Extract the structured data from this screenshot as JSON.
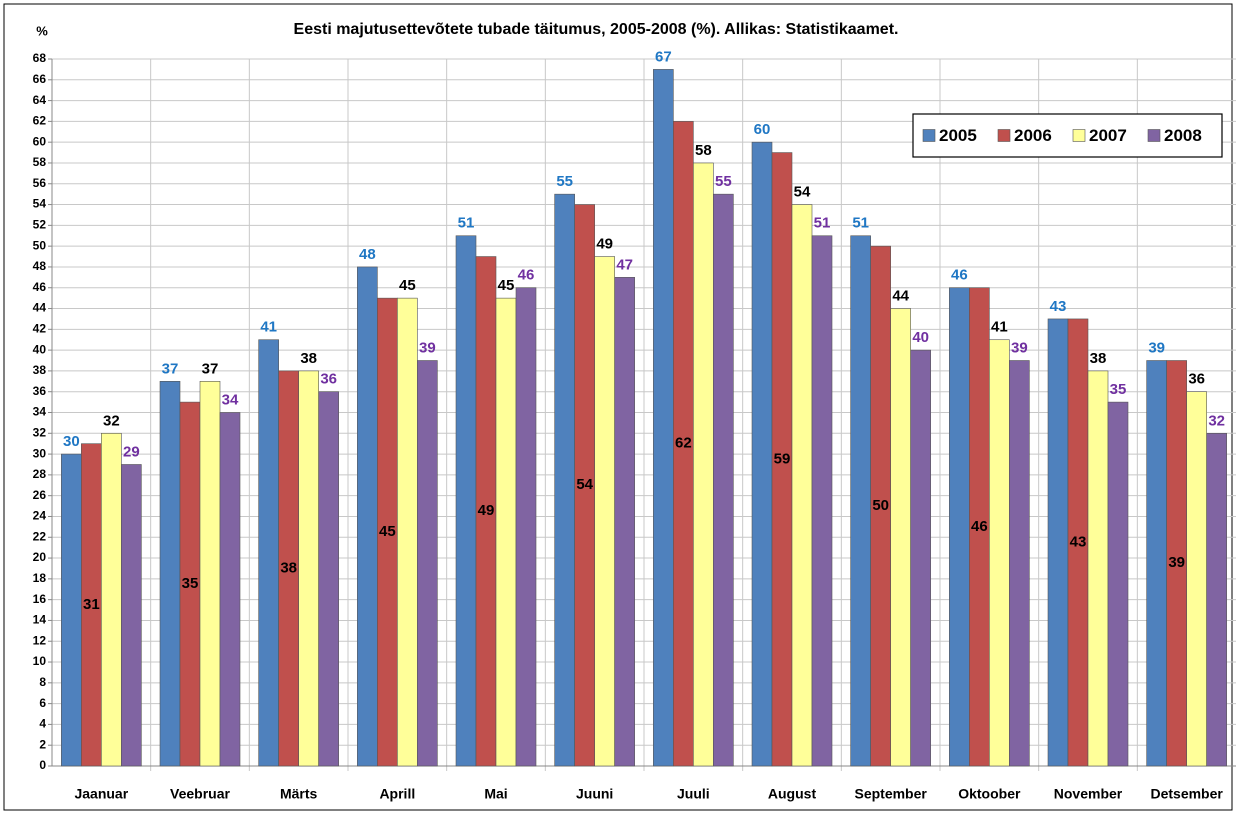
{
  "chart_data": {
    "type": "bar",
    "title": "Eesti majutusettevõtete tubade täitumus, 2005-2008 (%).  Allikas: Statistikaamet.",
    "y_label": "%",
    "categories": [
      "Jaanuar",
      "Veebruar",
      "Märts",
      "Aprill",
      "Mai",
      "Juuni",
      "Juuli",
      "August",
      "September",
      "Oktoober",
      "November",
      "Detsember"
    ],
    "series": [
      {
        "name": "2005",
        "color": "#4f81bd",
        "label_color": "#1f77c4",
        "values": [
          30,
          37,
          41,
          48,
          51,
          55,
          67,
          60,
          51,
          46,
          43,
          39
        ]
      },
      {
        "name": "2006",
        "color": "#c0504d",
        "label_color": "#000000",
        "values": [
          31,
          35,
          38,
          45,
          49,
          54,
          62,
          59,
          50,
          46,
          43,
          39
        ]
      },
      {
        "name": "2007",
        "color": "#ffff99",
        "label_color": "#000000",
        "values": [
          32,
          37,
          38,
          45,
          45,
          49,
          58,
          54,
          44,
          41,
          38,
          36
        ]
      },
      {
        "name": "2008",
        "color": "#8064a2",
        "label_color": "#7030a0",
        "values": [
          29,
          34,
          36,
          39,
          46,
          47,
          55,
          51,
          40,
          39,
          35,
          32
        ]
      }
    ],
    "ylim": [
      0,
      68
    ],
    "yticks": [
      0,
      2,
      4,
      6,
      8,
      10,
      12,
      14,
      16,
      18,
      20,
      22,
      24,
      26,
      28,
      30,
      32,
      34,
      36,
      38,
      40,
      42,
      44,
      46,
      48,
      50,
      52,
      54,
      56,
      58,
      60,
      62,
      64,
      66,
      68
    ],
    "grid": true,
    "legend": "top-right"
  }
}
